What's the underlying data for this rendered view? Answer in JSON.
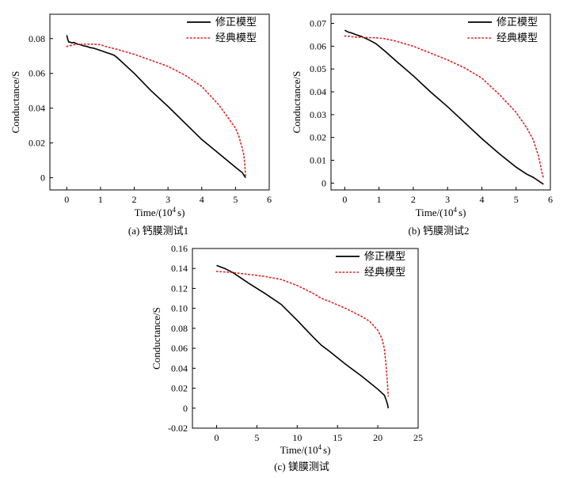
{
  "colors": {
    "revised": "#000000",
    "classic": "#e02020",
    "axis": "#000000"
  },
  "legend": {
    "revised_label": "修正模型",
    "classic_label": "经典模型"
  },
  "chart_data": [
    {
      "type": "line",
      "caption": "(a) 钙膜测试1",
      "xlabel_prefix": "Time/(10",
      "xlabel_exp": "4",
      "xlabel_suffix": "s)",
      "ylabel": "Conductance/S",
      "xlim": [
        -0.5,
        6
      ],
      "ylim": [
        -0.007,
        0.094
      ],
      "xticks": [
        0,
        1,
        2,
        3,
        4,
        5,
        6
      ],
      "xtick_labels": [
        "0",
        "1",
        "2",
        "3",
        "4",
        "5",
        "6"
      ],
      "yticks": [
        0,
        0.02,
        0.04,
        0.06,
        0.08
      ],
      "ytick_labels": [
        "0",
        "0.02",
        "0.04",
        "0.06",
        "0.08"
      ],
      "legend_position": "top-right",
      "series": [
        {
          "name": "修正模型",
          "style": "solid",
          "x": [
            0,
            0.03,
            0.06,
            0.1,
            0.15,
            0.2,
            0.3,
            0.4,
            0.5,
            0.6,
            0.7,
            0.8,
            0.9,
            1.0,
            1.1,
            1.2,
            1.3,
            1.4,
            1.5,
            2.0,
            2.5,
            3.0,
            3.5,
            4.0,
            4.5,
            5.0,
            5.1,
            5.2,
            5.25,
            5.28,
            5.3
          ],
          "y": [
            0.082,
            0.0795,
            0.078,
            0.078,
            0.0775,
            0.0778,
            0.077,
            0.0765,
            0.0758,
            0.0755,
            0.0748,
            0.0745,
            0.0738,
            0.0732,
            0.0725,
            0.0718,
            0.0712,
            0.0705,
            0.069,
            0.06,
            0.05,
            0.041,
            0.0315,
            0.022,
            0.014,
            0.006,
            0.0045,
            0.003,
            0.0015,
            0.0006,
            0.0
          ]
        },
        {
          "name": "经典模型",
          "style": "dotted",
          "x": [
            0,
            0.2,
            0.5,
            0.8,
            1.0,
            1.2,
            1.5,
            2.0,
            2.5,
            3.0,
            3.5,
            4.0,
            4.5,
            4.8,
            5.0,
            5.1,
            5.2,
            5.25,
            5.28,
            5.3
          ],
          "y": [
            0.0755,
            0.0765,
            0.0768,
            0.0768,
            0.0765,
            0.0752,
            0.0738,
            0.071,
            0.0675,
            0.064,
            0.059,
            0.0525,
            0.042,
            0.034,
            0.0285,
            0.024,
            0.017,
            0.013,
            0.007,
            0.0
          ]
        }
      ]
    },
    {
      "type": "line",
      "caption": "(b) 钙膜测试2",
      "xlabel_prefix": "Time/(10",
      "xlabel_exp": "4",
      "xlabel_suffix": "s)",
      "ylabel": "Conductance/S",
      "xlim": [
        -0.4,
        6
      ],
      "ylim": [
        -0.003,
        0.074
      ],
      "xticks": [
        0,
        1,
        2,
        3,
        4,
        5,
        6
      ],
      "xtick_labels": [
        "0",
        "1",
        "2",
        "3",
        "4",
        "5",
        "6"
      ],
      "yticks": [
        0,
        0.01,
        0.02,
        0.03,
        0.04,
        0.05,
        0.06,
        0.07
      ],
      "ytick_labels": [
        "0",
        "0.01",
        "0.02",
        "0.03",
        "0.04",
        "0.05",
        "0.06",
        "0.07"
      ],
      "legend_position": "top-right",
      "series": [
        {
          "name": "修正模型",
          "style": "solid",
          "x": [
            0,
            0.1,
            0.2,
            0.3,
            0.5,
            0.7,
            0.9,
            1.0,
            1.2,
            1.5,
            2.0,
            2.5,
            3.0,
            3.5,
            4.0,
            4.5,
            5.0,
            5.3,
            5.5,
            5.6,
            5.7,
            5.75,
            5.8
          ],
          "y": [
            0.067,
            0.0662,
            0.0658,
            0.0652,
            0.0642,
            0.0628,
            0.0612,
            0.06,
            0.0575,
            0.0535,
            0.047,
            0.04,
            0.0335,
            0.0265,
            0.0195,
            0.013,
            0.007,
            0.004,
            0.0025,
            0.0015,
            0.0005,
            0.0,
            -0.0005
          ]
        },
        {
          "name": "经典模型",
          "style": "dotted",
          "x": [
            0,
            0.3,
            0.6,
            0.9,
            1.2,
            1.5,
            2.0,
            2.5,
            3.0,
            3.5,
            4.0,
            4.5,
            5.0,
            5.3,
            5.5,
            5.65,
            5.75,
            5.8
          ],
          "y": [
            0.0645,
            0.064,
            0.0638,
            0.0637,
            0.0632,
            0.0622,
            0.06,
            0.057,
            0.054,
            0.0505,
            0.046,
            0.039,
            0.031,
            0.0245,
            0.019,
            0.012,
            0.005,
            0.002
          ]
        }
      ]
    },
    {
      "type": "line",
      "caption": "(c) 镁膜测试",
      "xlabel_prefix": "Time/(10",
      "xlabel_exp": "4",
      "xlabel_suffix": "s)",
      "ylabel": "Conductance/S",
      "xlim": [
        -3,
        25
      ],
      "ylim": [
        -0.02,
        0.16
      ],
      "xticks": [
        0,
        5,
        10,
        15,
        20,
        25
      ],
      "xtick_labels": [
        "0",
        "5",
        "10",
        "15",
        "20",
        "25"
      ],
      "yticks": [
        -0.02,
        0,
        0.02,
        0.04,
        0.06,
        0.08,
        0.1,
        0.12,
        0.14,
        0.16
      ],
      "ytick_labels": [
        "-0.02",
        "0",
        "0.02",
        "0.04",
        "0.06",
        "0.08",
        "0.10",
        "0.12",
        "0.14",
        "0.16"
      ],
      "legend_position": "top-right",
      "series": [
        {
          "name": "修正模型",
          "style": "solid",
          "x": [
            0,
            1,
            2,
            4,
            6,
            8,
            10,
            12,
            13,
            14,
            16,
            18,
            20,
            20.8,
            21,
            21.2,
            21.3
          ],
          "y": [
            0.143,
            0.14,
            0.136,
            0.125,
            0.115,
            0.104,
            0.088,
            0.071,
            0.063,
            0.057,
            0.044,
            0.032,
            0.019,
            0.013,
            0.009,
            0.004,
            0.0
          ]
        },
        {
          "name": "经典模型",
          "style": "dotted",
          "x": [
            0,
            2,
            4,
            6,
            8,
            10,
            12,
            13,
            14,
            16,
            18,
            19,
            20,
            20.5,
            20.8,
            21,
            21.2,
            21.3
          ],
          "y": [
            0.137,
            0.136,
            0.134,
            0.132,
            0.129,
            0.123,
            0.115,
            0.11,
            0.107,
            0.1,
            0.092,
            0.087,
            0.078,
            0.07,
            0.06,
            0.045,
            0.025,
            0.012
          ]
        }
      ]
    }
  ]
}
